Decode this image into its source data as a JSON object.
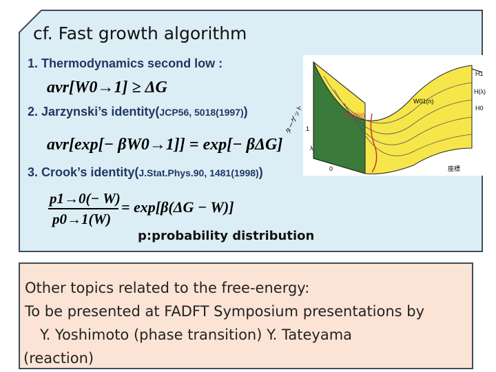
{
  "title": "cf. Fast growth algorithm",
  "items": [
    {
      "label": "1. Thermodynamics second low :",
      "formula": "avr[W0→1] ≥ ΔG"
    },
    {
      "label": "2. Jarzynski’s identity(",
      "ref": "JCP56, 5018(1997)",
      "close": ")",
      "formula": "avr[exp[− βW0→1]] = exp[− βΔG]"
    },
    {
      "label": "3. Crook’s identity(",
      "ref": "J.Stat.Phys.90, 1481(1998)",
      "close": ")",
      "numerator": "p1→0(− W)",
      "denominator": "p0→1(W)",
      "rhs": "= exp[β(ΔG − W)]"
    }
  ],
  "note": "p:probability distribution",
  "figure": {
    "labels": [
      "H1",
      "H(λ)",
      "H0",
      "W01(n)",
      "W10(n)",
      "λ",
      "1",
      "0",
      "座標",
      "ターゲット"
    ]
  },
  "bottom": [
    "Other topics related to the free-energy:",
    "To be presented at FADFT Symposium presentations by",
    "Y. Yoshimoto  (phase transition)  Y. Tateyama",
    "(reaction)"
  ]
}
